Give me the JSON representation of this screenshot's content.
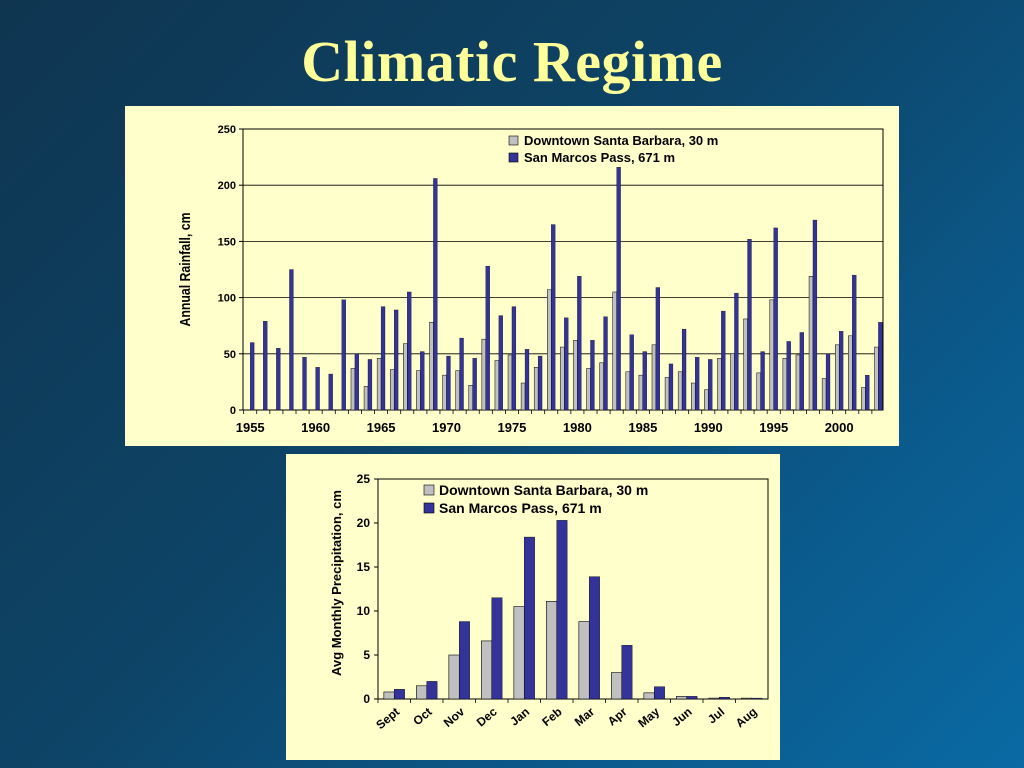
{
  "slide": {
    "title": "Climatic Regime"
  },
  "colors": {
    "downtown": "#c0c0c0",
    "sanmarcos": "#333399",
    "panel_bg": "#ffffcc",
    "title": "#ffff99"
  },
  "chart_data": [
    {
      "type": "bar",
      "ylabel": "Annual Rainfall, cm",
      "xlabel": "",
      "ylim": [
        0,
        250
      ],
      "yticks": [
        0,
        50,
        100,
        150,
        200,
        250
      ],
      "xticks": [
        1955,
        1960,
        1965,
        1970,
        1975,
        1980,
        1985,
        1990,
        1995,
        2000
      ],
      "grid": true,
      "legend_position": "top-right",
      "x": [
        1955,
        1956,
        1957,
        1958,
        1959,
        1960,
        1961,
        1962,
        1963,
        1964,
        1965,
        1966,
        1967,
        1968,
        1969,
        1970,
        1971,
        1972,
        1973,
        1974,
        1975,
        1976,
        1977,
        1978,
        1979,
        1980,
        1981,
        1982,
        1983,
        1984,
        1985,
        1986,
        1987,
        1988,
        1989,
        1990,
        1991,
        1992,
        1993,
        1994,
        1995,
        1996,
        1997,
        1998,
        1999,
        2000,
        2001,
        2002,
        2003
      ],
      "series": [
        {
          "name": "Downtown Santa Barbara, 30 m",
          "values": [
            null,
            null,
            null,
            null,
            null,
            null,
            null,
            null,
            37,
            21,
            46,
            36,
            59,
            35,
            78,
            31,
            35,
            22,
            63,
            44,
            49,
            24,
            38,
            107,
            56,
            62,
            37,
            42,
            105,
            34,
            31,
            58,
            29,
            34,
            24,
            18,
            46,
            50,
            81,
            33,
            98,
            46,
            49,
            119,
            28,
            58,
            66,
            20,
            56
          ]
        },
        {
          "name": "San Marcos Pass, 671 m",
          "values": [
            60,
            79,
            55,
            125,
            47,
            38,
            32,
            98,
            50,
            45,
            92,
            89,
            105,
            52,
            206,
            48,
            64,
            46,
            128,
            84,
            92,
            54,
            48,
            165,
            82,
            119,
            62,
            83,
            216,
            67,
            52,
            109,
            41,
            72,
            47,
            45,
            88,
            104,
            152,
            52,
            162,
            61,
            69,
            169,
            50,
            70,
            120,
            31,
            78
          ]
        }
      ]
    },
    {
      "type": "bar",
      "ylabel": "Avg Monthly Precipitation, cm",
      "xlabel": "",
      "ylim": [
        0,
        25
      ],
      "yticks": [
        0,
        5,
        10,
        15,
        20,
        25
      ],
      "grid": false,
      "legend_position": "top-right",
      "categories": [
        "Sept",
        "Oct",
        "Nov",
        "Dec",
        "Jan",
        "Feb",
        "Mar",
        "Apr",
        "May",
        "Jun",
        "Jul",
        "Aug"
      ],
      "series": [
        {
          "name": "Downtown Santa Barbara, 30 m",
          "values": [
            0.8,
            1.5,
            5.0,
            6.6,
            10.5,
            11.1,
            8.8,
            3.0,
            0.7,
            0.3,
            0.1,
            0.1
          ]
        },
        {
          "name": "San Marcos Pass, 671 m",
          "values": [
            1.1,
            2.0,
            8.8,
            11.5,
            18.4,
            20.3,
            13.9,
            6.1,
            1.4,
            0.3,
            0.2,
            0.1
          ]
        }
      ]
    }
  ]
}
